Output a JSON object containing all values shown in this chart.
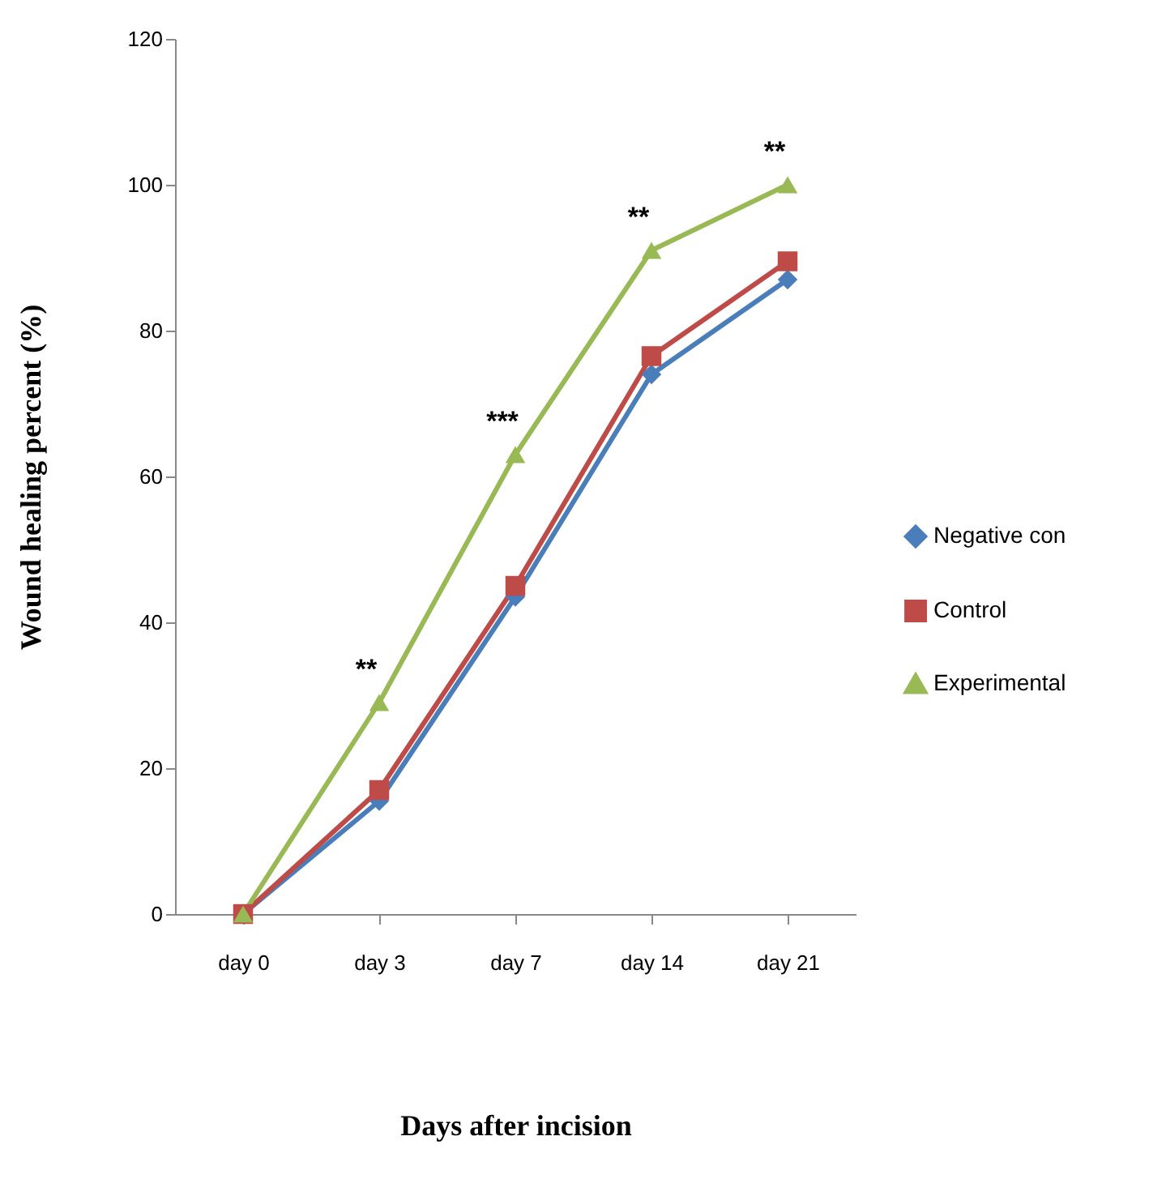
{
  "chart_data": {
    "type": "line",
    "xlabel": "Days after incision",
    "ylabel": "Wound healing percent (%)",
    "categories": [
      "day 0",
      "day 3",
      "day 7",
      "day 14",
      "day 21"
    ],
    "series": [
      {
        "name": "Negative con",
        "color": "#4a7ebb",
        "marker": "diamond",
        "values": [
          0,
          15.5,
          43.5,
          74,
          87
        ]
      },
      {
        "name": "Control",
        "color": "#be4b48",
        "marker": "square",
        "values": [
          0,
          17,
          45,
          76.5,
          89.5
        ]
      },
      {
        "name": "Experimental",
        "color": "#98b954",
        "marker": "triangle",
        "values": [
          0,
          29,
          63,
          91,
          100
        ]
      }
    ],
    "ylim": [
      0,
      120
    ],
    "yticks": [
      0,
      20,
      40,
      60,
      80,
      100,
      120
    ],
    "grid": false,
    "legend": "right",
    "line_style": "solid",
    "annotations": [
      {
        "text": "**",
        "x": "day 3",
        "y": 29
      },
      {
        "text": "***",
        "x": "day 7",
        "y": 63
      },
      {
        "text": "**",
        "x": "day 14",
        "y": 91
      },
      {
        "text": "**",
        "x": "day 21",
        "y": 100
      }
    ]
  }
}
